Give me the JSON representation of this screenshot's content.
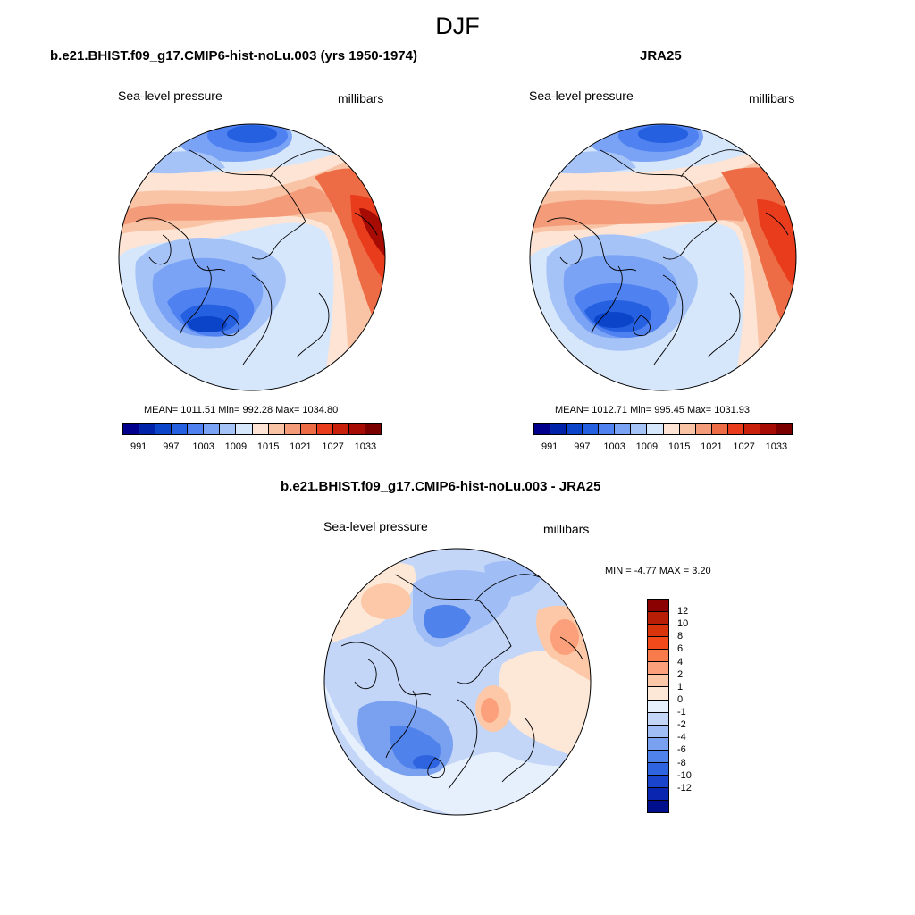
{
  "title": "DJF",
  "panels": {
    "model": {
      "title": "b.e21.BHIST.f09_g17.CMIP6-hist-noLu.003 (yrs 1950-1974)",
      "variable": "Sea-level pressure",
      "units": "millibars",
      "stats": "MEAN= 1011.51  Min= 992.28  Max= 1034.80"
    },
    "obs": {
      "title": "JRA25",
      "variable": "Sea-level pressure",
      "units": "millibars",
      "stats": "MEAN= 1012.71  Min= 995.45  Max= 1031.93"
    },
    "diff": {
      "title": "b.e21.BHIST.f09_g17.CMIP6-hist-noLu.003 - JRA25",
      "variable": "Sea-level pressure",
      "units": "millibars",
      "stats": "MIN =  -4.77 MAX =   3.20"
    }
  },
  "colorbar_abs": {
    "colors": [
      "#00008c",
      "#0022a8",
      "#0b44c8",
      "#2560e0",
      "#4f82f0",
      "#7aa3f5",
      "#a6c3f8",
      "#d6e6fb",
      "#fde4d4",
      "#f9c3a5",
      "#f49c7a",
      "#ee6c45",
      "#e83c1c",
      "#c9200b",
      "#a60c04",
      "#7a0000"
    ],
    "labels": [
      "991",
      "997",
      "1003",
      "1009",
      "1015",
      "1021",
      "1027",
      "1033"
    ]
  },
  "colorbar_diff": {
    "colors": [
      "#8b0000",
      "#b81d05",
      "#d9350d",
      "#f24a1a",
      "#f97a4a",
      "#fba07a",
      "#fcc8a8",
      "#fde8d8",
      "#e6effc",
      "#c3d6f8",
      "#a0bdf5",
      "#7aa1f0",
      "#4f82ea",
      "#2e64e0",
      "#1a44cc",
      "#0a26b0",
      "#00108c"
    ],
    "labels": [
      "12",
      "10",
      "8",
      "6",
      "4",
      "2",
      "1",
      "0",
      "-1",
      "-2",
      "-4",
      "-6",
      "-8",
      "-10",
      "-12"
    ]
  },
  "maps": {
    "model": {
      "description_icon": "polar-stereographic-map"
    },
    "obs": {
      "description_icon": "polar-stereographic-map"
    },
    "diff": {
      "description_icon": "polar-stereographic-map"
    }
  }
}
